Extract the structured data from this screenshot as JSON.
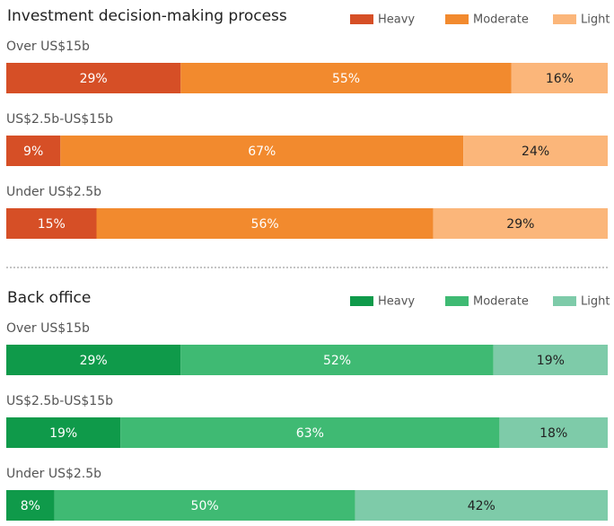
{
  "chart_data": [
    {
      "type": "bar",
      "horizontal": true,
      "stacked": true,
      "title": "Investment decision-making process",
      "categories": [
        "Over US$15b",
        "US$2.5b-US$15b",
        "Under US$2.5b"
      ],
      "series": [
        {
          "name": "Heavy",
          "color": "#d64f26",
          "values": [
            29,
            9,
            15
          ],
          "value_labels": [
            "29%",
            "9%",
            "15%"
          ]
        },
        {
          "name": "Moderate",
          "color": "#f28a2e",
          "values": [
            55,
            67,
            56
          ],
          "value_labels": [
            "55%",
            "67%",
            "56%"
          ]
        },
        {
          "name": "Light",
          "color": "#fbb67a",
          "values": [
            16,
            24,
            29
          ],
          "value_labels": [
            "16%",
            "24%",
            "29%"
          ]
        }
      ]
    },
    {
      "type": "bar",
      "horizontal": true,
      "stacked": true,
      "title": "Back office",
      "categories": [
        "Over US$15b",
        "US$2.5b-US$15b",
        "Under US$2.5b"
      ],
      "series": [
        {
          "name": "Heavy",
          "color": "#0f9a4a",
          "values": [
            29,
            19,
            8
          ],
          "value_labels": [
            "29%",
            "19%",
            "8%"
          ]
        },
        {
          "name": "Moderate",
          "color": "#3fba73",
          "values": [
            52,
            63,
            50
          ],
          "value_labels": [
            "52%",
            "63%",
            "50%"
          ]
        },
        {
          "name": "Light",
          "color": "#7ecba9",
          "values": [
            19,
            18,
            42
          ],
          "value_labels": [
            "19%",
            "18%",
            "42%"
          ]
        }
      ]
    }
  ]
}
